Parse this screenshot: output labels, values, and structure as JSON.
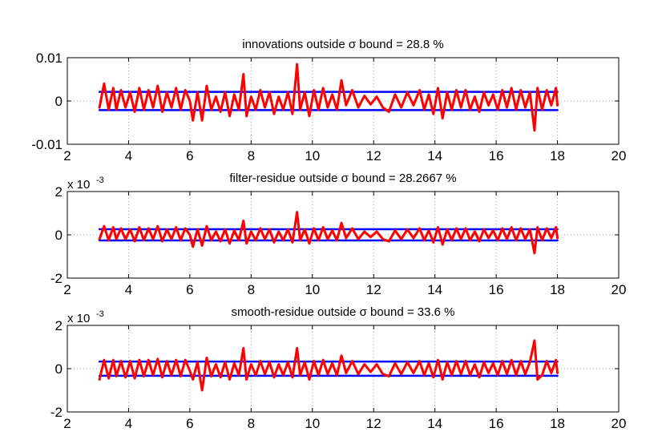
{
  "chart_data": [
    {
      "type": "line",
      "title": "innovations outside σ bound = 28.8 %",
      "xlim": [
        2,
        20
      ],
      "ylim": [
        -0.01,
        0.01
      ],
      "xticks": [
        "2",
        "4",
        "6",
        "8",
        "10",
        "12",
        "14",
        "16",
        "18",
        "20"
      ],
      "yticks": [
        "-0.01",
        "0",
        "0.01"
      ],
      "exponent_label": "",
      "grid": "dotted",
      "series": [
        {
          "color": "#0000ff",
          "x": [
            3.05,
            18.0
          ],
          "y": [
            0.0021,
            0.0021
          ]
        },
        {
          "color": "#0000ff",
          "x": [
            3.05,
            18.0
          ],
          "y": [
            -0.0021,
            -0.0021
          ]
        },
        {
          "color": "#ff0000",
          "x": [
            3.05,
            3.2,
            3.35,
            3.5,
            3.6,
            3.75,
            3.9,
            4.05,
            4.2,
            4.35,
            4.5,
            4.65,
            4.8,
            4.95,
            5.1,
            5.25,
            5.4,
            5.55,
            5.7,
            5.85,
            6.0,
            6.1,
            6.25,
            6.4,
            6.55,
            6.7,
            6.85,
            7.0,
            7.15,
            7.3,
            7.45,
            7.6,
            7.75,
            7.85,
            8.0,
            8.15,
            8.3,
            8.45,
            8.6,
            8.75,
            8.9,
            9.05,
            9.2,
            9.35,
            9.5,
            9.6,
            9.75,
            9.9,
            10.05,
            10.2,
            10.35,
            10.5,
            10.65,
            10.8,
            10.95,
            11.1,
            11.3,
            11.5,
            11.7,
            11.9,
            12.1,
            12.3,
            12.5,
            12.7,
            12.9,
            13.1,
            13.3,
            13.5,
            13.65,
            13.8,
            13.95,
            14.1,
            14.25,
            14.4,
            14.55,
            14.7,
            14.85,
            15.0,
            15.15,
            15.3,
            15.45,
            15.6,
            15.75,
            15.9,
            16.05,
            16.2,
            16.35,
            16.5,
            16.65,
            16.8,
            16.95,
            17.1,
            17.25,
            17.35,
            17.5,
            17.65,
            17.8,
            17.95,
            18.0
          ],
          "y": [
            -0.0015,
            0.004,
            -0.002,
            0.003,
            -0.002,
            0.0025,
            -0.0015,
            0.002,
            -0.0025,
            0.003,
            -0.002,
            0.0025,
            -0.0015,
            0.0035,
            -0.0025,
            0.002,
            -0.0015,
            0.003,
            -0.002,
            0.0025,
            0.0,
            -0.0045,
            0.002,
            -0.0045,
            0.0035,
            -0.002,
            0.001,
            -0.0025,
            0.002,
            -0.0035,
            0.0015,
            -0.002,
            0.0062,
            -0.0035,
            0.001,
            -0.002,
            0.0025,
            -0.0015,
            0.002,
            -0.003,
            0.001,
            -0.002,
            0.002,
            -0.003,
            0.0085,
            -0.002,
            0.002,
            -0.0035,
            0.0025,
            -0.002,
            0.003,
            -0.0015,
            0.0015,
            -0.002,
            0.0048,
            -0.001,
            0.0025,
            -0.0015,
            0.0012,
            -0.0008,
            0.001,
            -0.0015,
            -0.0025,
            0.0015,
            -0.0015,
            0.002,
            -0.001,
            0.0025,
            -0.002,
            0.0015,
            -0.003,
            0.003,
            -0.004,
            0.002,
            -0.002,
            0.0025,
            -0.0015,
            0.0025,
            -0.002,
            0.001,
            -0.0025,
            0.002,
            -0.001,
            0.0015,
            -0.002,
            0.0025,
            -0.0015,
            0.003,
            -0.002,
            0.0025,
            -0.0015,
            0.002,
            -0.0068,
            0.003,
            -0.002,
            0.0025,
            -0.001,
            0.003,
            -0.001
          ]
        }
      ]
    },
    {
      "type": "line",
      "title": "filter-residue outside σ bound = 28.2667 %",
      "xlim": [
        2,
        20
      ],
      "ylim": [
        -2,
        2
      ],
      "xticks": [
        "2",
        "4",
        "6",
        "8",
        "10",
        "12",
        "14",
        "16",
        "18",
        "20"
      ],
      "yticks": [
        "-2",
        "0",
        "2"
      ],
      "exponent_label": "x 10",
      "exponent_power": "-3",
      "grid": "dotted",
      "series": [
        {
          "color": "#0000ff",
          "x": [
            3.05,
            18.0
          ],
          "y": [
            0.26,
            0.26
          ]
        },
        {
          "color": "#0000ff",
          "x": [
            3.05,
            18.0
          ],
          "y": [
            -0.26,
            -0.26
          ]
        },
        {
          "color": "#ff0000",
          "x": [
            3.05,
            3.2,
            3.35,
            3.5,
            3.6,
            3.75,
            3.9,
            4.05,
            4.2,
            4.35,
            4.5,
            4.65,
            4.8,
            4.95,
            5.1,
            5.25,
            5.4,
            5.55,
            5.7,
            5.85,
            6.0,
            6.1,
            6.25,
            6.4,
            6.55,
            6.7,
            6.85,
            7.0,
            7.15,
            7.3,
            7.45,
            7.6,
            7.75,
            7.85,
            8.0,
            8.15,
            8.3,
            8.45,
            8.6,
            8.75,
            8.9,
            9.05,
            9.2,
            9.35,
            9.5,
            9.6,
            9.75,
            9.9,
            10.05,
            10.2,
            10.35,
            10.5,
            10.65,
            10.8,
            10.95,
            11.1,
            11.3,
            11.5,
            11.7,
            11.9,
            12.1,
            12.3,
            12.5,
            12.7,
            12.9,
            13.1,
            13.3,
            13.5,
            13.65,
            13.8,
            13.95,
            14.1,
            14.25,
            14.4,
            14.55,
            14.7,
            14.85,
            15.0,
            15.15,
            15.3,
            15.45,
            15.6,
            15.75,
            15.9,
            16.05,
            16.2,
            16.35,
            16.5,
            16.65,
            16.8,
            16.95,
            17.1,
            17.25,
            17.35,
            17.5,
            17.65,
            17.8,
            17.95,
            18.0
          ],
          "y": [
            -0.2,
            0.4,
            -0.25,
            0.35,
            -0.2,
            0.3,
            -0.2,
            0.25,
            -0.3,
            0.35,
            -0.25,
            0.3,
            -0.2,
            0.4,
            -0.3,
            0.25,
            -0.2,
            0.35,
            -0.25,
            0.3,
            0.0,
            -0.55,
            0.25,
            -0.5,
            0.4,
            -0.25,
            0.15,
            -0.3,
            0.25,
            -0.4,
            0.2,
            -0.25,
            0.65,
            -0.4,
            0.15,
            -0.25,
            0.3,
            -0.2,
            0.25,
            -0.35,
            0.15,
            -0.25,
            0.25,
            -0.35,
            1.05,
            -0.25,
            0.25,
            -0.4,
            0.3,
            -0.25,
            0.35,
            -0.2,
            0.2,
            -0.25,
            0.55,
            -0.15,
            0.3,
            -0.2,
            0.15,
            -0.1,
            0.15,
            -0.2,
            -0.3,
            0.2,
            -0.2,
            0.25,
            -0.15,
            0.3,
            -0.25,
            0.2,
            -0.35,
            0.35,
            -0.45,
            0.25,
            -0.25,
            0.3,
            -0.2,
            0.3,
            -0.25,
            0.15,
            -0.3,
            0.25,
            -0.15,
            0.2,
            -0.25,
            0.3,
            -0.2,
            0.35,
            -0.25,
            0.3,
            -0.2,
            0.25,
            -0.85,
            0.35,
            -0.25,
            0.3,
            -0.15,
            0.35,
            -0.15
          ]
        }
      ]
    },
    {
      "type": "line",
      "title": "smooth-residue outside σ bound = 33.6 %",
      "xlim": [
        2,
        20
      ],
      "ylim": [
        -2,
        2
      ],
      "xticks": [
        "2",
        "4",
        "6",
        "8",
        "10",
        "12",
        "14",
        "16",
        "18",
        "20"
      ],
      "yticks": [
        "-2",
        "0",
        "2"
      ],
      "exponent_label": "x 10",
      "exponent_power": "-3",
      "grid": "dotted",
      "series": [
        {
          "color": "#0000ff",
          "x": [
            3.05,
            18.0
          ],
          "y": [
            0.33,
            0.33
          ]
        },
        {
          "color": "#0000ff",
          "x": [
            3.05,
            18.0
          ],
          "y": [
            -0.33,
            -0.33
          ]
        },
        {
          "color": "#ff0000",
          "x": [
            3.05,
            3.2,
            3.35,
            3.5,
            3.6,
            3.75,
            3.9,
            4.05,
            4.2,
            4.35,
            4.5,
            4.65,
            4.8,
            4.95,
            5.1,
            5.25,
            5.4,
            5.55,
            5.7,
            5.85,
            6.0,
            6.1,
            6.25,
            6.4,
            6.55,
            6.7,
            6.85,
            7.0,
            7.15,
            7.3,
            7.45,
            7.6,
            7.75,
            7.85,
            8.0,
            8.15,
            8.3,
            8.45,
            8.6,
            8.75,
            8.9,
            9.05,
            9.2,
            9.35,
            9.5,
            9.6,
            9.75,
            9.9,
            10.05,
            10.2,
            10.35,
            10.5,
            10.65,
            10.8,
            10.95,
            11.1,
            11.3,
            11.5,
            11.7,
            11.9,
            12.1,
            12.3,
            12.5,
            12.7,
            12.9,
            13.1,
            13.3,
            13.5,
            13.65,
            13.8,
            13.95,
            14.1,
            14.25,
            14.4,
            14.55,
            14.7,
            14.85,
            15.0,
            15.15,
            15.3,
            15.45,
            15.6,
            15.75,
            15.9,
            16.05,
            16.2,
            16.35,
            16.5,
            16.65,
            16.8,
            16.95,
            17.1,
            17.25,
            17.35,
            17.5,
            17.65,
            17.8,
            17.95,
            18.0
          ],
          "y": [
            -0.5,
            0.4,
            -0.45,
            0.4,
            -0.35,
            0.35,
            -0.4,
            0.35,
            -0.45,
            0.4,
            -0.35,
            0.4,
            -0.3,
            0.45,
            -0.4,
            0.35,
            -0.3,
            0.4,
            -0.35,
            0.4,
            -0.1,
            -0.5,
            0.3,
            -1.0,
            0.5,
            -0.35,
            0.2,
            -0.4,
            0.3,
            -0.5,
            0.25,
            -0.3,
            0.95,
            -0.5,
            0.2,
            -0.3,
            0.35,
            -0.25,
            0.3,
            -0.4,
            0.2,
            -0.3,
            0.3,
            -0.4,
            0.95,
            -0.3,
            0.3,
            -0.5,
            0.35,
            -0.3,
            0.4,
            -0.25,
            0.25,
            -0.3,
            0.6,
            -0.2,
            0.35,
            -0.25,
            0.2,
            -0.15,
            0.2,
            -0.25,
            -0.35,
            0.25,
            -0.25,
            0.3,
            -0.2,
            0.35,
            -0.3,
            0.25,
            -0.4,
            0.4,
            -0.5,
            0.3,
            -0.3,
            0.35,
            -0.25,
            0.35,
            -0.3,
            0.2,
            -0.4,
            0.3,
            -0.2,
            0.25,
            -0.3,
            0.35,
            -0.25,
            0.4,
            -0.3,
            0.35,
            -0.25,
            0.3,
            1.3,
            -0.5,
            -0.3,
            0.35,
            -0.2,
            0.4,
            -0.2
          ]
        }
      ]
    }
  ]
}
